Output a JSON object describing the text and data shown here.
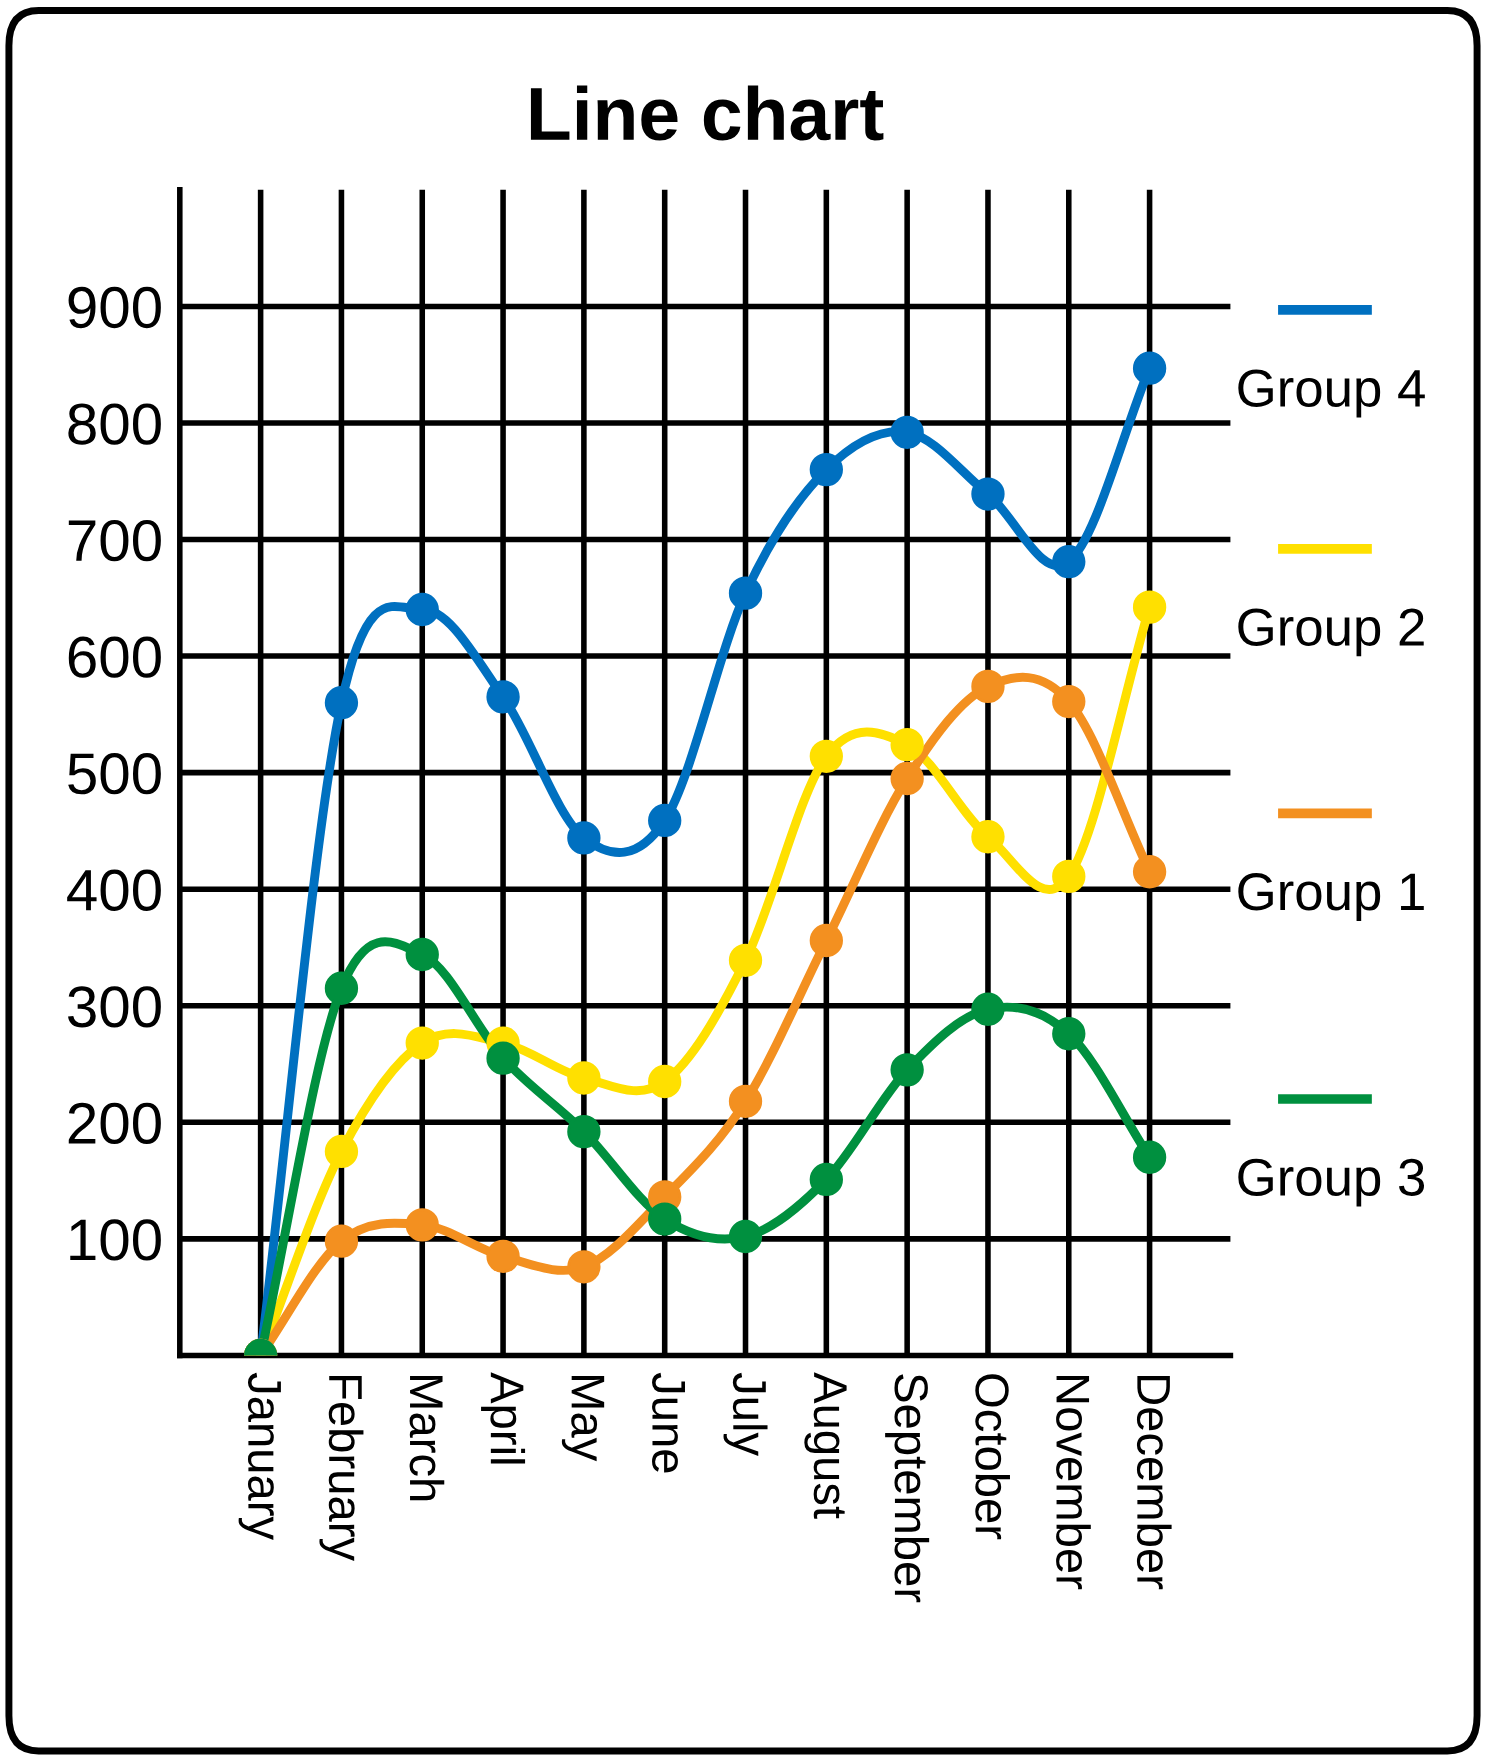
{
  "chart_data": {
    "type": "line",
    "title": "Line chart",
    "categories": [
      "January",
      "February",
      "March",
      "April",
      "May",
      "June",
      "July",
      "August",
      "September",
      "October",
      "November",
      "December"
    ],
    "series": [
      {
        "name": "Group 4",
        "color": "#0070c0",
        "values": [
          0,
          560,
          640,
          565,
          444,
          459,
          654,
          760,
          792,
          739,
          681,
          847
        ]
      },
      {
        "name": "Group 2",
        "color": "#ffe000",
        "values": [
          0,
          175,
          268,
          268,
          238,
          235,
          339,
          514,
          524,
          445,
          411,
          642
        ]
      },
      {
        "name": "Group 1",
        "color": "#f39020",
        "values": [
          0,
          98,
          112,
          85,
          76,
          136,
          218,
          356,
          495,
          574,
          561,
          415
        ]
      },
      {
        "name": "Group 3",
        "color": "#00903f",
        "values": [
          0,
          315,
          344,
          255,
          192,
          117,
          102,
          151,
          245,
          297,
          276,
          170
        ]
      }
    ],
    "ylim": [
      0,
      1000
    ],
    "yticks": [
      100,
      200,
      300,
      400,
      500,
      600,
      700,
      800,
      900
    ],
    "grid": true,
    "legend": "right",
    "marker": "circle",
    "line_style": "solid"
  }
}
